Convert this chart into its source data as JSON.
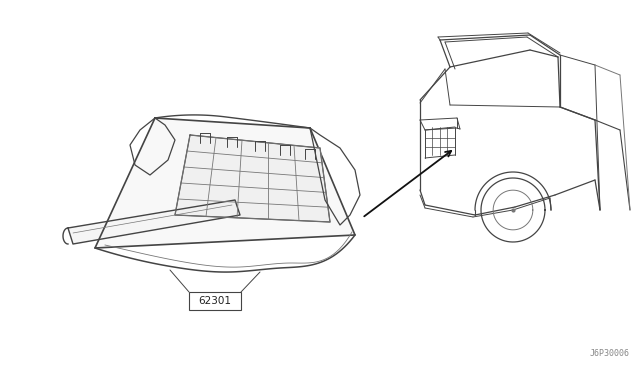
{
  "background_color": "#ffffff",
  "line_color": "#444444",
  "light_line_color": "#777777",
  "part_number": "62301",
  "ref_number": "J6P30006",
  "fig_width": 6.4,
  "fig_height": 3.72,
  "dpi": 100
}
